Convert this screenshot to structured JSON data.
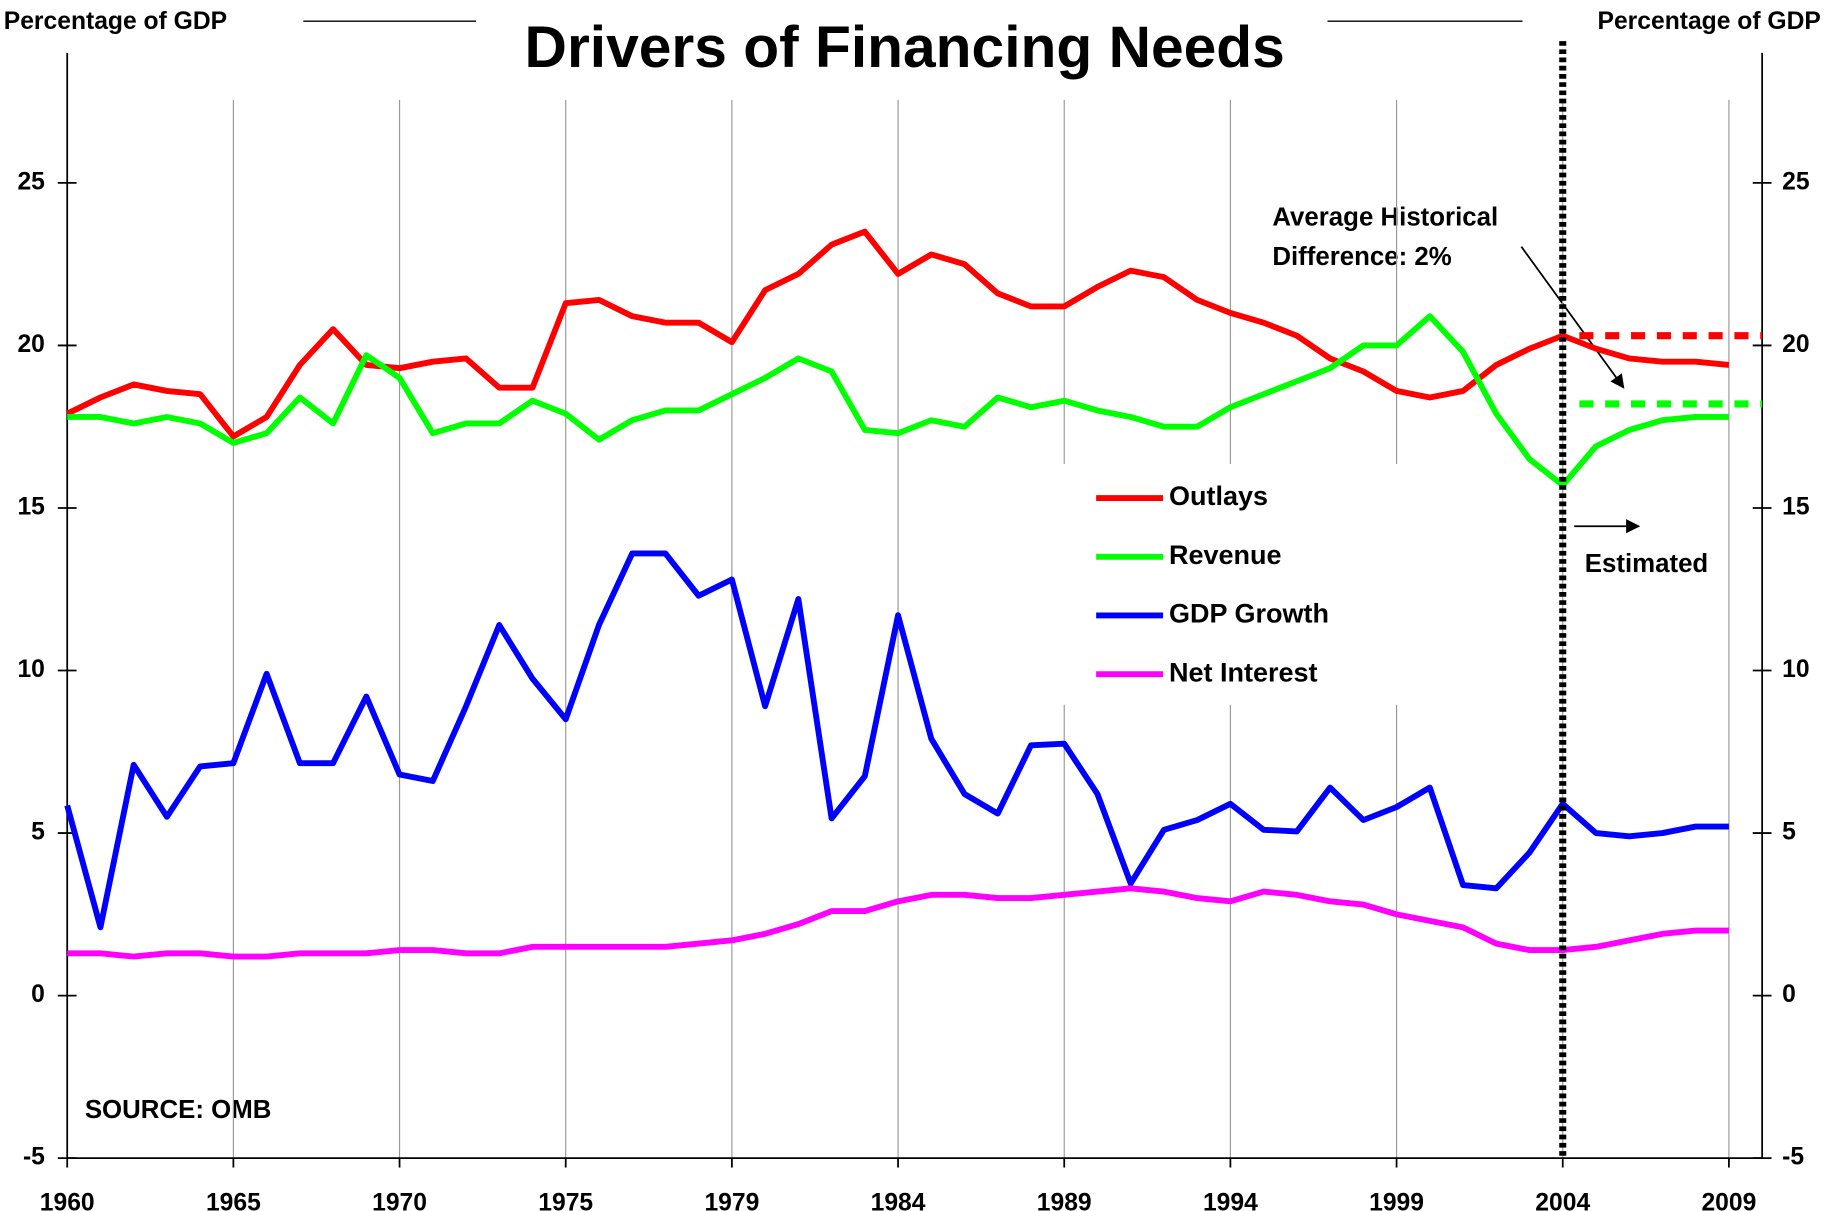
{
  "chart_data": {
    "type": "line",
    "title": "Drivers of Financing Needs",
    "y_axis_label": "Percentage of GDP",
    "y2_axis_label": "Percentage of GDP",
    "categories": [
      "1960",
      null,
      null,
      null,
      null,
      "1965",
      null,
      null,
      null,
      null,
      "1970",
      null,
      null,
      null,
      null,
      "1975",
      null,
      null,
      null,
      null,
      "1979",
      null,
      null,
      null,
      null,
      "1984",
      null,
      null,
      null,
      null,
      "1989",
      null,
      null,
      null,
      null,
      "1994",
      null,
      null,
      null,
      null,
      "1999",
      null,
      null,
      null,
      null,
      "2004",
      null,
      null,
      null,
      null,
      "2009"
    ],
    "ylim": [
      -5,
      29
    ],
    "yticks": [
      -5,
      0,
      5,
      10,
      15,
      20,
      25
    ],
    "y2lim": [
      -5,
      29
    ],
    "y2ticks": [
      -5,
      0,
      5,
      10,
      15,
      20,
      25
    ],
    "grid": "x",
    "series": [
      {
        "name": "Outlays",
        "color": "#ff0000",
        "values": [
          17.9,
          18.4,
          18.8,
          18.6,
          18.5,
          17.2,
          17.8,
          19.4,
          20.5,
          19.4,
          19.3,
          19.5,
          19.6,
          18.7,
          18.7,
          21.3,
          21.4,
          20.9,
          20.7,
          20.7,
          20.1,
          21.7,
          22.2,
          23.1,
          23.5,
          22.2,
          22.8,
          22.5,
          21.6,
          21.2,
          21.2,
          21.8,
          22.3,
          22.1,
          21.4,
          21.0,
          20.7,
          20.3,
          19.6,
          19.2,
          18.6,
          18.4,
          18.6,
          19.4,
          19.9,
          20.3,
          19.9,
          19.6,
          19.5,
          19.5,
          19.4
        ]
      },
      {
        "name": "Revenue",
        "color": "#00ff00",
        "values": [
          17.8,
          17.8,
          17.6,
          17.8,
          17.6,
          17.0,
          17.3,
          18.4,
          17.6,
          19.7,
          19.0,
          17.3,
          17.6,
          17.6,
          18.3,
          17.9,
          17.1,
          17.7,
          18.0,
          18.0,
          18.5,
          19.0,
          19.6,
          19.2,
          17.4,
          17.3,
          17.7,
          17.5,
          18.4,
          18.1,
          18.3,
          18.0,
          17.8,
          17.5,
          17.5,
          18.1,
          18.5,
          18.9,
          19.3,
          20.0,
          20.0,
          20.9,
          19.8,
          17.9,
          16.5,
          15.7,
          16.9,
          17.4,
          17.7,
          17.8,
          17.8
        ]
      },
      {
        "name": "GDP Growth",
        "color": "#0000ff",
        "values": [
          5.85,
          2.1,
          7.1,
          5.5,
          7.05,
          7.15,
          9.9,
          7.15,
          7.15,
          9.2,
          6.8,
          6.6,
          8.9,
          11.4,
          9.75,
          8.5,
          11.4,
          13.6,
          13.6,
          12.3,
          12.8,
          8.9,
          12.2,
          5.45,
          6.75,
          11.7,
          7.9,
          6.2,
          5.6,
          7.7,
          7.75,
          6.2,
          3.45,
          5.1,
          5.4,
          5.9,
          5.1,
          5.05,
          6.4,
          5.4,
          5.8,
          6.4,
          3.4,
          3.3,
          4.4,
          5.9,
          5.0,
          4.9,
          5.0,
          5.2,
          5.2
        ]
      },
      {
        "name": "Net Interest",
        "color": "#ff00ff",
        "values": [
          1.3,
          1.3,
          1.2,
          1.3,
          1.3,
          1.2,
          1.2,
          1.3,
          1.3,
          1.3,
          1.4,
          1.4,
          1.3,
          1.3,
          1.5,
          1.5,
          1.5,
          1.5,
          1.5,
          1.6,
          1.7,
          1.9,
          2.2,
          2.6,
          2.6,
          2.9,
          3.1,
          3.1,
          3.0,
          3.0,
          3.1,
          3.2,
          3.3,
          3.2,
          3.0,
          2.9,
          3.2,
          3.1,
          2.9,
          2.8,
          2.5,
          2.3,
          2.1,
          1.6,
          1.4,
          1.4,
          1.5,
          1.7,
          1.9,
          2.0,
          2.0
        ]
      }
    ],
    "reference_lines": [
      {
        "value": 20.3,
        "color": "#ff0000"
      },
      {
        "value": 18.2,
        "color": "#00ff00"
      }
    ],
    "vline_category": "2004",
    "annotation": {
      "lines": [
        "Average Historical",
        "Difference: 2%"
      ]
    },
    "estimated_label": "Estimated",
    "source": "SOURCE: OMB"
  }
}
